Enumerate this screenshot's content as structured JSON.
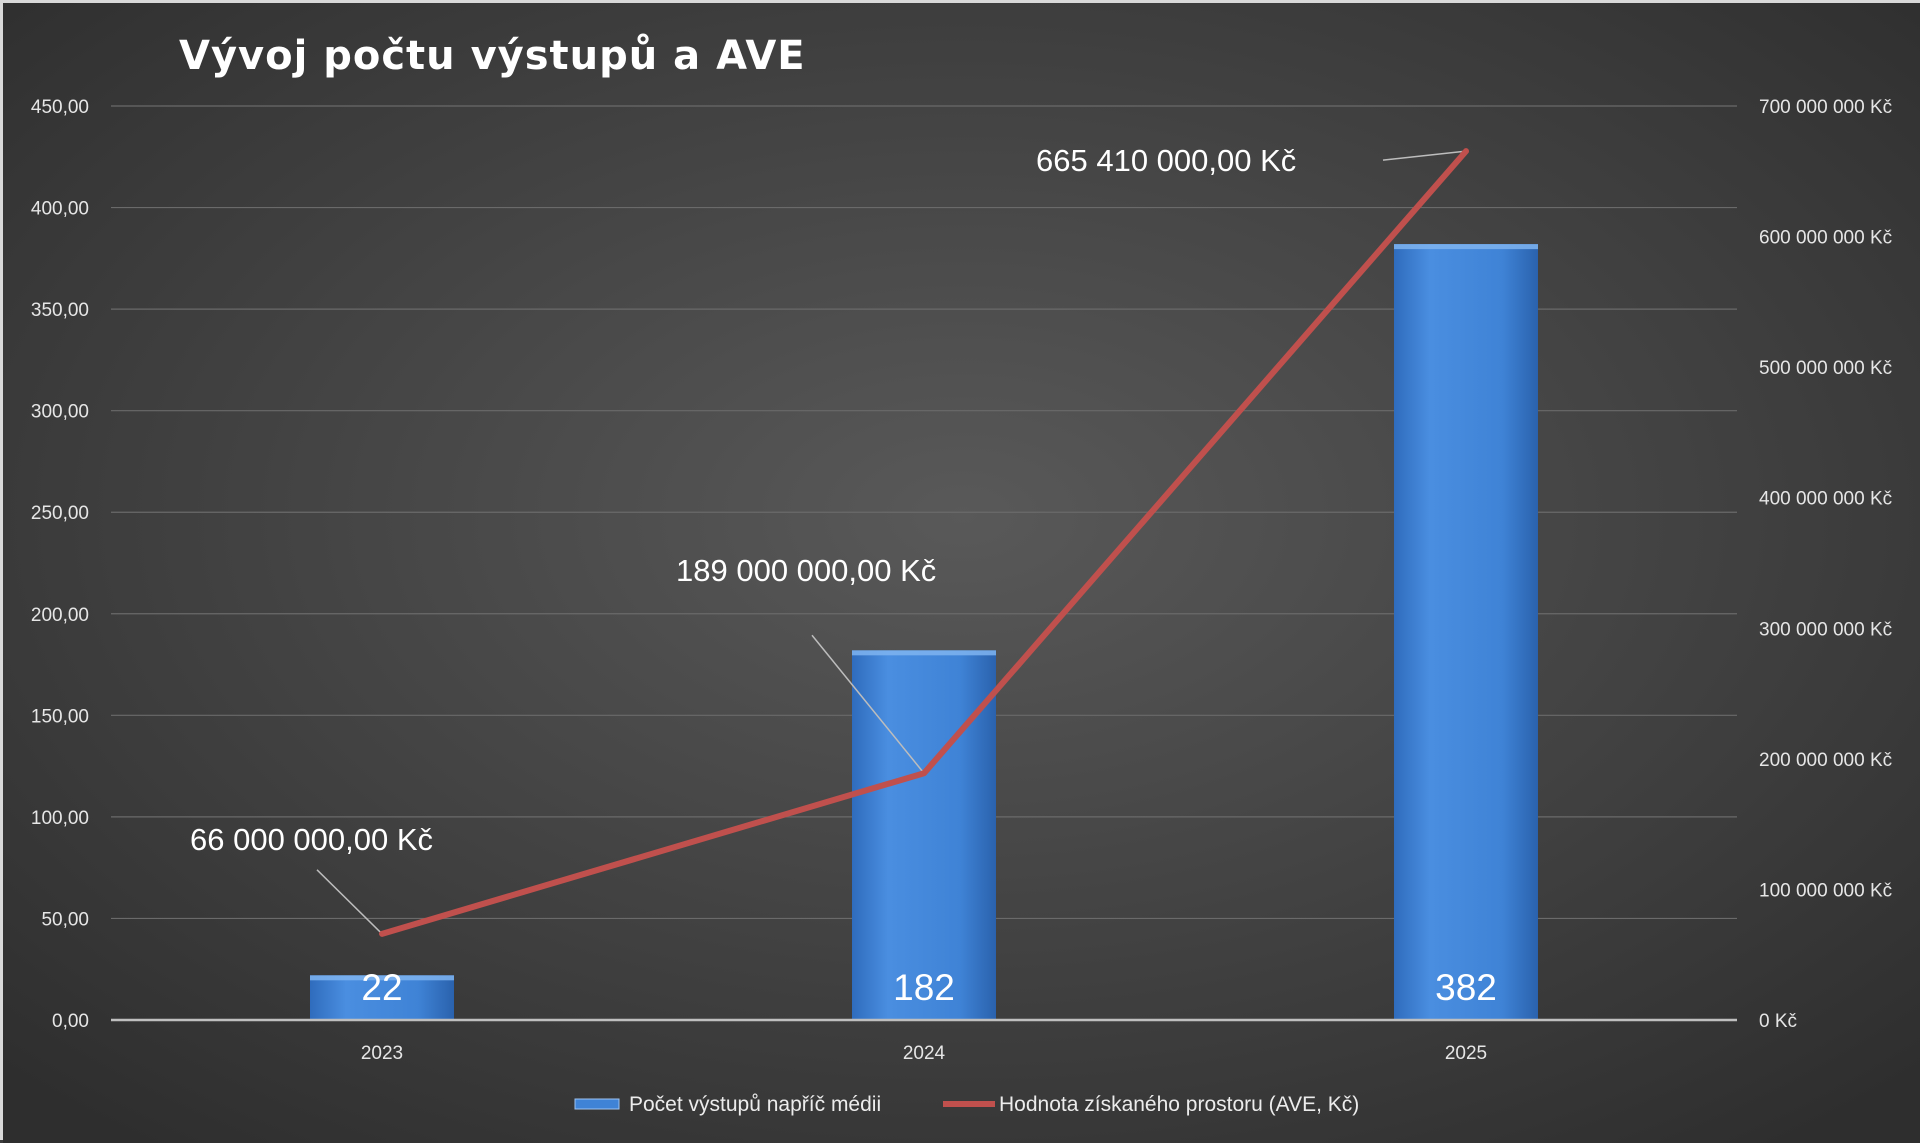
{
  "chart_data": {
    "type": "bar",
    "title": "Vývoj počtu výstupů a AVE",
    "categories": [
      "2023",
      "2024",
      "2025"
    ],
    "series": [
      {
        "name": "Počet výstupů napříč médii",
        "type": "bar",
        "axis": "left",
        "values": [
          22,
          182,
          382
        ],
        "data_labels": [
          "22",
          "182",
          "382"
        ],
        "color": "#3f83d6"
      },
      {
        "name": "Hodnota získaného prostoru (AVE, Kč)",
        "type": "line",
        "axis": "right",
        "values": [
          66000000,
          189000000,
          665410000
        ],
        "data_labels": [
          "66 000 000,00 Kč",
          "189 000 000,00 Kč",
          "665 410 000,00 Kč"
        ],
        "color": "#c0504d"
      }
    ],
    "y_left": {
      "range": [
        0,
        450
      ],
      "ticks": [
        0,
        50,
        100,
        150,
        200,
        250,
        300,
        350,
        400,
        450
      ],
      "tick_labels": [
        "0,00",
        "50,00",
        "100,00",
        "150,00",
        "200,00",
        "250,00",
        "300,00",
        "350,00",
        "400,00",
        "450,00"
      ]
    },
    "y_right": {
      "range": [
        0,
        700000000
      ],
      "ticks": [
        0,
        100000000,
        200000000,
        300000000,
        400000000,
        500000000,
        600000000,
        700000000
      ],
      "tick_labels": [
        "0 Kč",
        "100 000 000 Kč",
        "200 000 000 Kč",
        "300 000 000 Kč",
        "400 000 000 Kč",
        "500 000 000 Kč",
        "600 000 000 Kč",
        "700 000 000 Kč"
      ]
    },
    "grid": true,
    "legend": "bottom-center",
    "colors": {
      "background": "#3c3c3c",
      "bar": "#3f83d6",
      "line": "#c0504d"
    }
  }
}
